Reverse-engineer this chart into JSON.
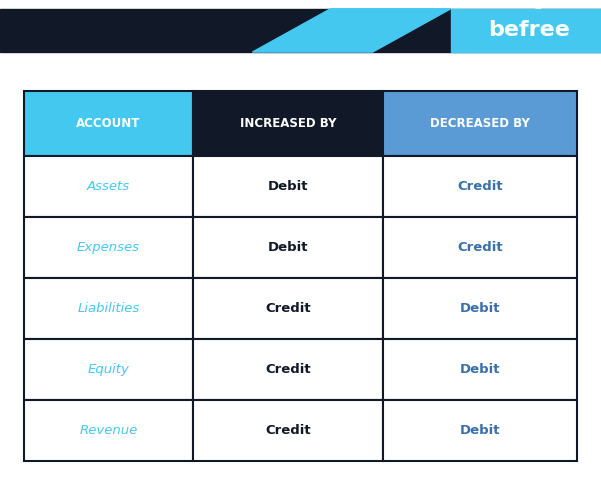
{
  "fig_width": 6.01,
  "fig_height": 4.9,
  "dpi": 100,
  "bg_color": "#ffffff",
  "header_bg_dark": "#111827",
  "header_bg_light": "#5b9bd5",
  "header_bg_cyan": "#45c8f0",
  "header_text_color": "#ffffff",
  "table_border_color": "#111827",
  "col1_header": "ACCOUNT",
  "col2_header": "INCREASED BY",
  "col3_header": "DECREASED BY",
  "rows": [
    [
      "Assets",
      "Debit",
      "Credit"
    ],
    [
      "Expenses",
      "Debit",
      "Credit"
    ],
    [
      "Liabilities",
      "Credit",
      "Debit"
    ],
    [
      "Equity",
      "Credit",
      "Debit"
    ],
    [
      "Revenue",
      "Credit",
      "Debit"
    ]
  ],
  "col1_text_color": "#45c8f0",
  "col2_text_color": "#111827",
  "col3_text_color": "#3a6fa8",
  "top_banner_color": "#111827",
  "top_banner_cyan": "#45c8f0",
  "logo_text": "befree",
  "logo_color": "#ffffff",
  "logo_bg": "#45c8f0"
}
